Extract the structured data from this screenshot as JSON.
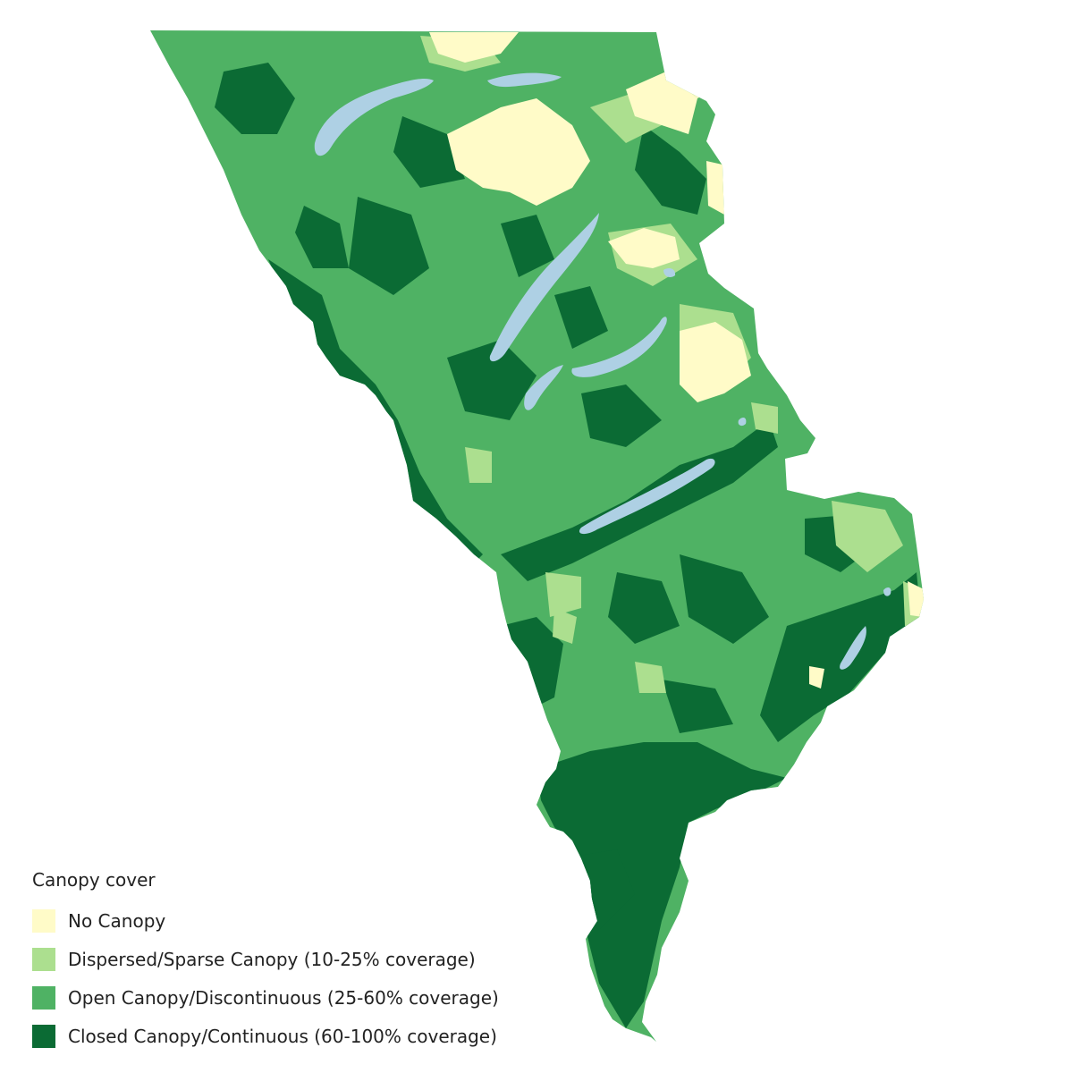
{
  "legend": {
    "title": "Canopy cover",
    "items": [
      {
        "label": "No Canopy",
        "color": "#fffbc8"
      },
      {
        "label": "Dispersed/Sparse Canopy (10-25% coverage)",
        "color": "#acdf8f"
      },
      {
        "label": "Open Canopy/Discontinuous (25-60% coverage)",
        "color": "#4fb264"
      },
      {
        "label": "Closed Canopy/Continuous (60-100% coverage)",
        "color": "#0b6b34"
      }
    ]
  },
  "colors": {
    "water": "#aed0e4",
    "background": "#ffffff"
  }
}
